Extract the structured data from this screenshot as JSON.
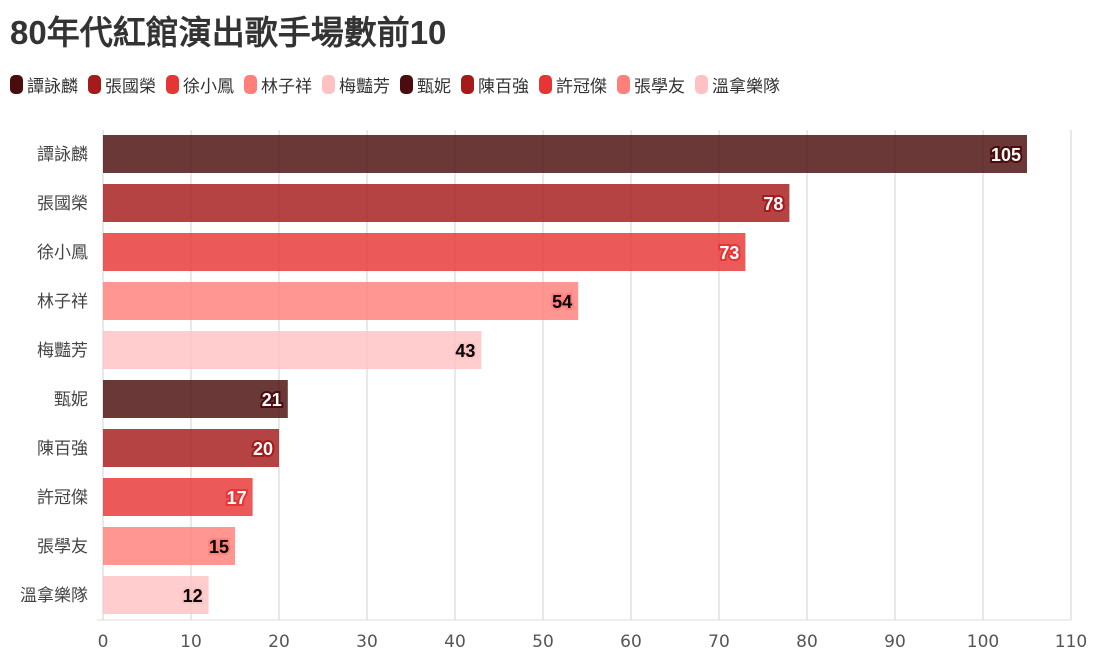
{
  "chart_data": {
    "type": "bar",
    "orientation": "horizontal",
    "title": "80年代紅館演出歌手場數前10",
    "categories": [
      "譚詠麟",
      "張國榮",
      "徐小鳳",
      "林子祥",
      "梅豔芳",
      "甄妮",
      "陳百強",
      "許冠傑",
      "張學友",
      "溫拿樂隊"
    ],
    "values": [
      105,
      78,
      73,
      54,
      43,
      21,
      20,
      17,
      15,
      12
    ],
    "colors": [
      "#4a0c0c",
      "#a51a1a",
      "#e63535",
      "#ff7f7a",
      "#ffc2c2",
      "#4a0c0c",
      "#a51a1a",
      "#e63535",
      "#ff7f7a",
      "#ffc2c2"
    ],
    "xlim": [
      0,
      110
    ],
    "xticks": [
      0,
      10,
      20,
      30,
      40,
      50,
      60,
      70,
      80,
      90,
      100,
      110
    ],
    "grid": true,
    "legend": "top-left",
    "data_labels": true
  }
}
